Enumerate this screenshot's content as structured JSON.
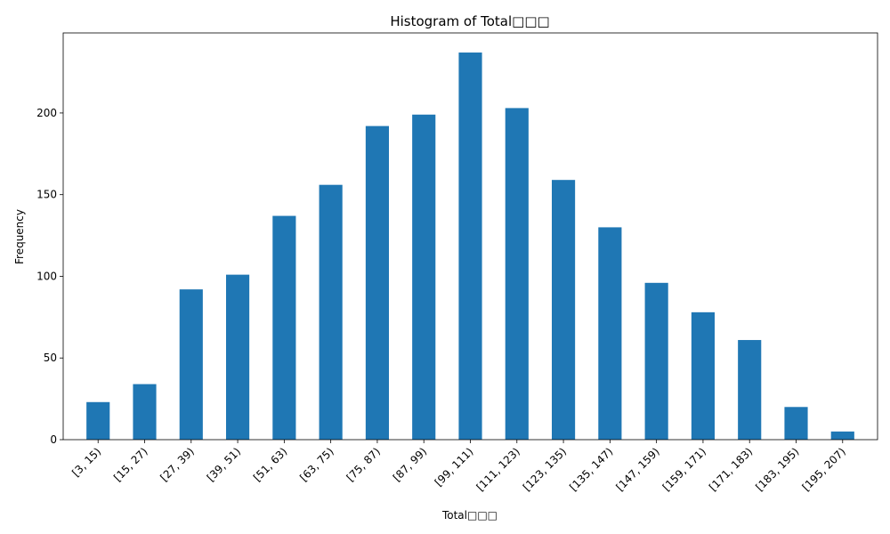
{
  "chart_data": {
    "type": "bar",
    "title": "Histogram of Total□□□",
    "xlabel": "Total□□□",
    "ylabel": "Frequency",
    "categories": [
      "[3, 15)",
      "[15, 27)",
      "[27, 39)",
      "[39, 51)",
      "[51, 63)",
      "[63, 75)",
      "[75, 87)",
      "[87, 99)",
      "[99, 111)",
      "[111, 123)",
      "[123, 135)",
      "[135, 147)",
      "[147, 159)",
      "[159, 171)",
      "[171, 183)",
      "[183, 195)",
      "[195, 207)"
    ],
    "values": [
      23,
      34,
      92,
      101,
      137,
      156,
      192,
      199,
      237,
      203,
      159,
      130,
      96,
      78,
      61,
      20,
      5
    ],
    "ylim": [
      0,
      249
    ],
    "yticks": [
      0,
      50,
      100,
      150,
      200
    ],
    "bar_color": "#1f77b4",
    "grid": false,
    "legend": false
  }
}
